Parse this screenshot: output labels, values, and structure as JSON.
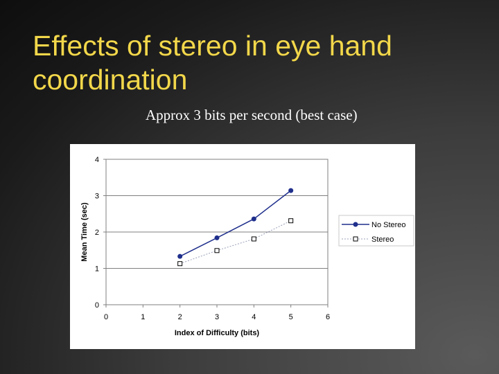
{
  "slide": {
    "title": "Effects of stereo in eye hand coordination",
    "subtitle": "Approx 3 bits per second (best case)"
  },
  "colors": {
    "title": "#f2d74a",
    "no_stereo": "#1f2f8c",
    "stereo_line": "#9aa0b8",
    "grid": "#7f7f7f"
  },
  "chart_data": {
    "type": "line",
    "xlabel": "Index of Difficulty (bits)",
    "ylabel": "Mean Time (sec)",
    "xlim": [
      0,
      6
    ],
    "ylim": [
      0,
      4
    ],
    "x_ticks": [
      "0",
      "1",
      "2",
      "3",
      "4",
      "5",
      "6"
    ],
    "y_ticks": [
      "0",
      "1",
      "2",
      "3",
      "4"
    ],
    "grid": "horizontal",
    "legend_position": "right",
    "series": [
      {
        "name": "No Stereo",
        "marker": "filled-circle",
        "x": [
          2,
          3,
          4,
          5
        ],
        "y": [
          1.33,
          1.84,
          2.36,
          3.14
        ]
      },
      {
        "name": "Stereo",
        "marker": "open-square",
        "x": [
          2,
          3,
          4,
          5
        ],
        "y": [
          1.13,
          1.49,
          1.81,
          2.31
        ]
      }
    ]
  }
}
